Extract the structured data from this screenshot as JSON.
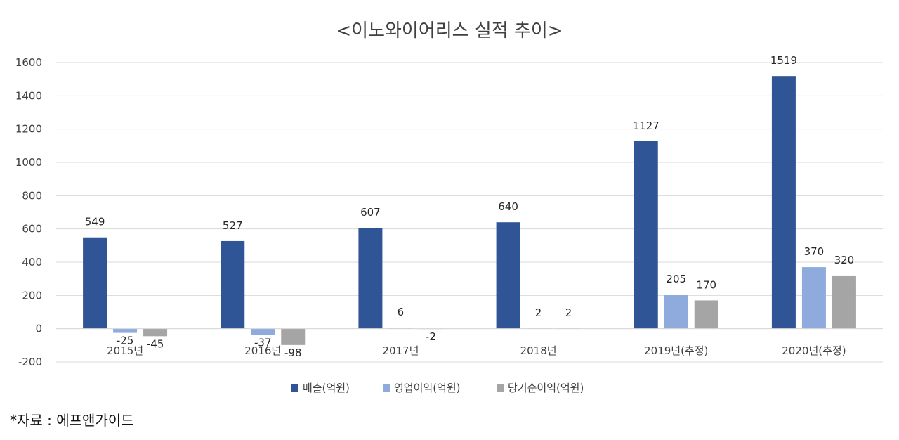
{
  "chart_data": {
    "type": "bar",
    "title": "<이노와이어리스 실적 추이>",
    "categories": [
      "2015년",
      "2016년",
      "2017년",
      "2018년",
      "2019년(추정)",
      "2020년(추정)"
    ],
    "series": [
      {
        "name": "매출(억원)",
        "color": "#2F5597",
        "values": [
          549,
          527,
          607,
          640,
          1127,
          1519
        ],
        "labels": [
          "549",
          "527",
          "607",
          "640",
          "1127",
          "1519"
        ]
      },
      {
        "name": "영업이익(억원)",
        "color": "#8FAADC",
        "values": [
          -25,
          -37,
          6,
          2,
          205,
          370
        ],
        "labels": [
          "-25",
          "-37",
          "6",
          "2",
          "205",
          "370"
        ]
      },
      {
        "name": "당기순이익(억원)",
        "color": "#A5A5A5",
        "values": [
          -45,
          -98,
          -2,
          2,
          170,
          320
        ],
        "labels": [
          "-45",
          "-98",
          "-2",
          "2",
          "170",
          "320"
        ]
      }
    ],
    "yticks": [
      "-200",
      "0",
      "200",
      "400",
      "600",
      "800",
      "1000",
      "1200",
      "1400",
      "1600"
    ],
    "ylim": [
      -200,
      1600
    ],
    "grid": true,
    "legend": "bottom"
  },
  "source": "*자료 : 에프앤가이드"
}
